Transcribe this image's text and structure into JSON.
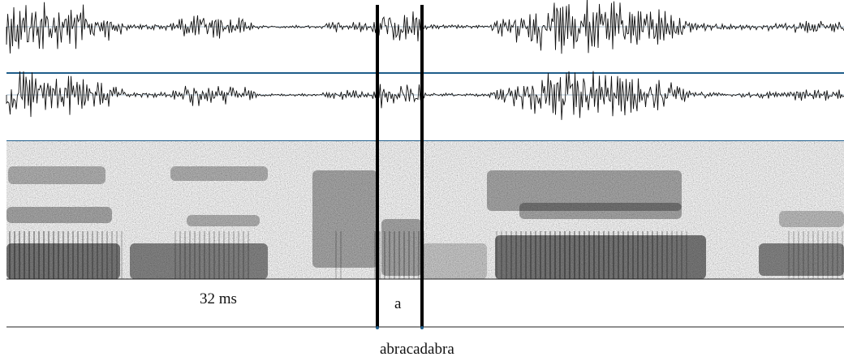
{
  "tiers": {
    "duration_label": "32 ms",
    "segment_label": "a",
    "word_label": "abracadabra"
  },
  "colors": {
    "waveform": "#111111",
    "tier_rule": "#1f5d8a",
    "boundary": "#000000",
    "background": "#ffffff"
  }
}
